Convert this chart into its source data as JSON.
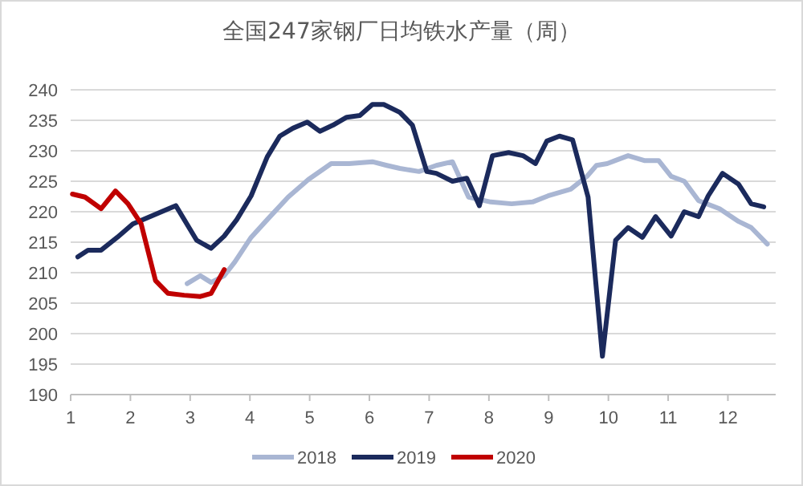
{
  "chart_data": {
    "type": "line",
    "title": "全国247家钢厂日均铁水产量（周）",
    "xlim": [
      1,
      12.8
    ],
    "xticks": [
      1,
      2,
      3,
      4,
      5,
      6,
      7,
      8,
      9,
      10,
      11,
      12
    ],
    "ylim": [
      190,
      240
    ],
    "yticks": [
      190,
      195,
      200,
      205,
      210,
      215,
      220,
      225,
      230,
      235,
      240
    ],
    "grid": "y",
    "legend": "bottom",
    "marker": "none",
    "line_style": "solid",
    "series": [
      {
        "name": "2018",
        "color": "#a9b6d3",
        "x": [
          2.95,
          3.17,
          3.35,
          3.57,
          3.75,
          4.02,
          4.29,
          4.64,
          4.98,
          5.36,
          5.66,
          6.05,
          6.29,
          6.51,
          6.83,
          7.12,
          7.39,
          7.66,
          8.03,
          8.38,
          8.73,
          8.99,
          9.37,
          9.64,
          9.8,
          9.98,
          10.33,
          10.6,
          10.84,
          11.05,
          11.27,
          11.51,
          11.86,
          12.18,
          12.39,
          12.66
        ],
        "values": [
          208.2,
          209.5,
          208.4,
          209.5,
          211.8,
          215.8,
          218.7,
          222.4,
          225.3,
          227.9,
          227.9,
          228.2,
          227.6,
          227.1,
          226.6,
          227.6,
          228.2,
          222.4,
          221.6,
          221.3,
          221.6,
          222.6,
          223.7,
          225.8,
          227.6,
          227.9,
          229.2,
          228.4,
          228.4,
          225.8,
          225,
          221.8,
          220.5,
          218.4,
          217.4,
          214.7
        ]
      },
      {
        "name": "2019",
        "color": "#1b2a5c",
        "x": [
          1.12,
          1.29,
          1.51,
          1.78,
          2.04,
          2.76,
          3.11,
          3.35,
          3.57,
          3.78,
          4.02,
          4.29,
          4.5,
          4.72,
          4.96,
          5.17,
          5.39,
          5.62,
          5.84,
          6.05,
          6.24,
          6.51,
          6.72,
          6.96,
          7.12,
          7.39,
          7.63,
          7.84,
          8.06,
          8.33,
          8.57,
          8.78,
          8.97,
          9.18,
          9.4,
          9.66,
          9.9,
          10.12,
          10.33,
          10.57,
          10.79,
          11.05,
          11.27,
          11.51,
          11.67,
          11.91,
          12.18,
          12.39,
          12.6
        ],
        "values": [
          212.6,
          213.7,
          213.7,
          215.8,
          218,
          221,
          215.3,
          214,
          216,
          218.7,
          222.6,
          229,
          232.4,
          233.7,
          234.7,
          233.2,
          234.2,
          235.5,
          235.8,
          237.6,
          237.6,
          236.3,
          234.2,
          226.6,
          226.3,
          225,
          225.5,
          221,
          229.2,
          229.7,
          229.2,
          227.9,
          231.6,
          232.4,
          231.8,
          222.4,
          196.3,
          215.3,
          217.4,
          215.8,
          219.2,
          216,
          220,
          219.2,
          222.6,
          226.3,
          224.5,
          221.3,
          220.8
        ]
      },
      {
        "name": "2020",
        "color": "#c00000",
        "x": [
          1.03,
          1.24,
          1.51,
          1.75,
          1.96,
          2.18,
          2.42,
          2.63,
          2.9,
          3.17,
          3.35,
          3.57
        ],
        "values": [
          222.9,
          222.4,
          220.5,
          223.4,
          221.3,
          218,
          208.7,
          206.6,
          206.3,
          206.1,
          206.6,
          210.5
        ]
      }
    ]
  }
}
